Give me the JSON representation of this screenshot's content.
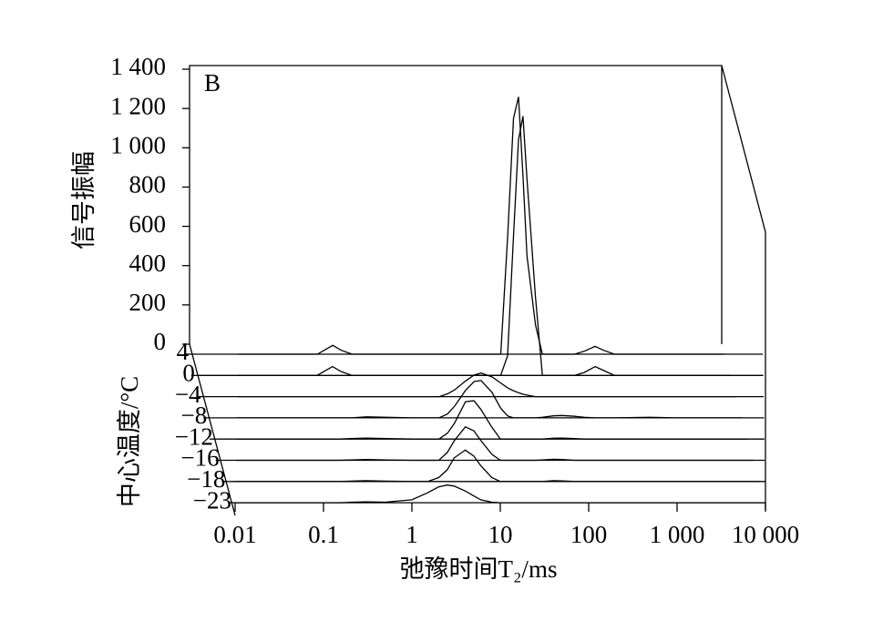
{
  "chart_data": {
    "type": "waterfall",
    "annotation": "B",
    "y_label": "信号振幅",
    "x_label": "弛豫时间T₂/ms",
    "depth_label": "中心温度/°C",
    "x_log": true,
    "xlim": [
      0.01,
      10000
    ],
    "xticks": [
      0.01,
      0.1,
      1,
      10,
      100,
      {
        "value": 1000,
        "label": "1 000"
      },
      {
        "value": 10000,
        "label": "10 000"
      }
    ],
    "ylim": [
      0,
      1400
    ],
    "yticks": [
      0,
      200,
      400,
      600,
      800,
      {
        "value": 1000,
        "label": "1 000"
      },
      {
        "value": 1200,
        "label": "1 200"
      },
      {
        "value": 1400,
        "label": "1 400"
      }
    ],
    "grid": false,
    "x": [
      0.01,
      0.05,
      0.08,
      0.1,
      0.12,
      0.15,
      0.2,
      0.3,
      0.5,
      1,
      1.5,
      2,
      2.5,
      3,
      4,
      5,
      6,
      8,
      10,
      12,
      14,
      16,
      18,
      20,
      25,
      30,
      40,
      50,
      70,
      90,
      120,
      150,
      200,
      500,
      1000,
      10000
    ],
    "series": [
      {
        "name": "4",
        "color": "#000000",
        "values": [
          0,
          0,
          0,
          25,
          45,
          20,
          0,
          0,
          0,
          0,
          0,
          0,
          0,
          0,
          0,
          0,
          0,
          0,
          0,
          600,
          1200,
          1310,
          900,
          500,
          150,
          0,
          0,
          0,
          0,
          15,
          40,
          20,
          0,
          0,
          0,
          0
        ]
      },
      {
        "name": "0",
        "color": "#000000",
        "values": [
          0,
          0,
          0,
          25,
          45,
          20,
          0,
          0,
          0,
          0,
          0,
          0,
          0,
          0,
          0,
          0,
          0,
          0,
          0,
          100,
          700,
          1200,
          1320,
          1000,
          400,
          0,
          0,
          0,
          0,
          15,
          45,
          25,
          0,
          0,
          0,
          0
        ]
      },
      {
        "name": "−4",
        "color": "#000000",
        "values": [
          0,
          0,
          0,
          0,
          0,
          0,
          0,
          0,
          0,
          0,
          0,
          0,
          15,
          35,
          80,
          110,
          120,
          100,
          70,
          45,
          30,
          20,
          12,
          8,
          0,
          0,
          0,
          0,
          0,
          0,
          0,
          0,
          0,
          0,
          0,
          0
        ]
      },
      {
        "name": "−8",
        "color": "#000000",
        "values": [
          0,
          0,
          0,
          0,
          0,
          0,
          0,
          5,
          3,
          0,
          0,
          0,
          20,
          60,
          140,
          185,
          190,
          130,
          50,
          10,
          0,
          0,
          0,
          0,
          0,
          3,
          10,
          12,
          8,
          3,
          0,
          0,
          0,
          3,
          0,
          0
        ]
      },
      {
        "name": "−12",
        "color": "#000000",
        "values": [
          0,
          0,
          0,
          0,
          0,
          0,
          3,
          5,
          3,
          0,
          0,
          0,
          30,
          80,
          190,
          195,
          150,
          60,
          0,
          0,
          0,
          0,
          0,
          0,
          0,
          0,
          4,
          5,
          3,
          0,
          0,
          0,
          0,
          0,
          0,
          0
        ]
      },
      {
        "name": "−16",
        "color": "#000000",
        "values": [
          0,
          0,
          0,
          0,
          0,
          0,
          2,
          4,
          2,
          0,
          0,
          0,
          40,
          100,
          170,
          150,
          100,
          30,
          0,
          0,
          0,
          0,
          0,
          0,
          0,
          2,
          5,
          4,
          0,
          0,
          0,
          0,
          0,
          0,
          0,
          0
        ]
      },
      {
        "name": "−18",
        "color": "#000000",
        "values": [
          0,
          0,
          0,
          0,
          0,
          0,
          2,
          4,
          2,
          0,
          0,
          20,
          60,
          120,
          160,
          130,
          80,
          20,
          0,
          0,
          0,
          0,
          0,
          0,
          0,
          0,
          4,
          3,
          0,
          0,
          0,
          0,
          0,
          0,
          0,
          0
        ]
      },
      {
        "name": "−23",
        "color": "#000000",
        "values": [
          0,
          0,
          0,
          0,
          0,
          0,
          2,
          4,
          3,
          15,
          50,
          80,
          90,
          85,
          60,
          35,
          15,
          3,
          0,
          0,
          0,
          0,
          0,
          0,
          0,
          0,
          0,
          0,
          0,
          0,
          0,
          0,
          0,
          0,
          0,
          0
        ]
      }
    ]
  }
}
